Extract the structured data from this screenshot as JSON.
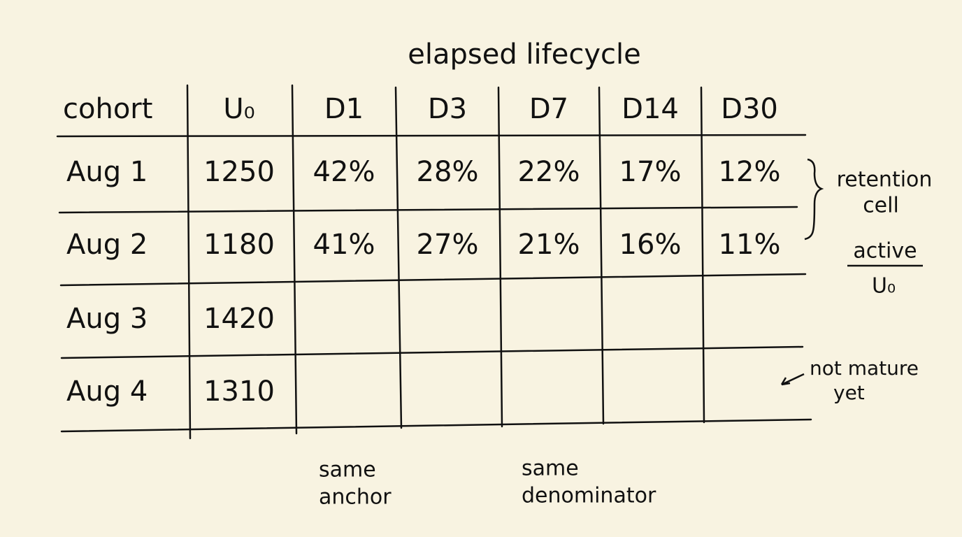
{
  "title": "elapsed lifecycle",
  "table": {
    "header": [
      "cohort",
      "U₀",
      "D1",
      "D3",
      "D7",
      "D14",
      "D30"
    ],
    "rows": [
      [
        "Aug 1",
        "1250",
        "42%",
        "28%",
        "22%",
        "17%",
        "12%"
      ],
      [
        "Aug 2",
        "1180",
        "41%",
        "27%",
        "21%",
        "16%",
        "11%"
      ],
      [
        "Aug 3",
        "1420"
      ],
      [
        "Aug 4",
        "1310"
      ]
    ]
  },
  "annotations": {
    "retention_cell": [
      "retention",
      "cell"
    ],
    "formula": {
      "numerator": "active",
      "denominator": "U₀"
    },
    "not_mature": [
      "not mature",
      "yet"
    ],
    "same_anchor": [
      "same",
      "anchor"
    ],
    "same_denominator": [
      "same",
      "denominator"
    ]
  }
}
